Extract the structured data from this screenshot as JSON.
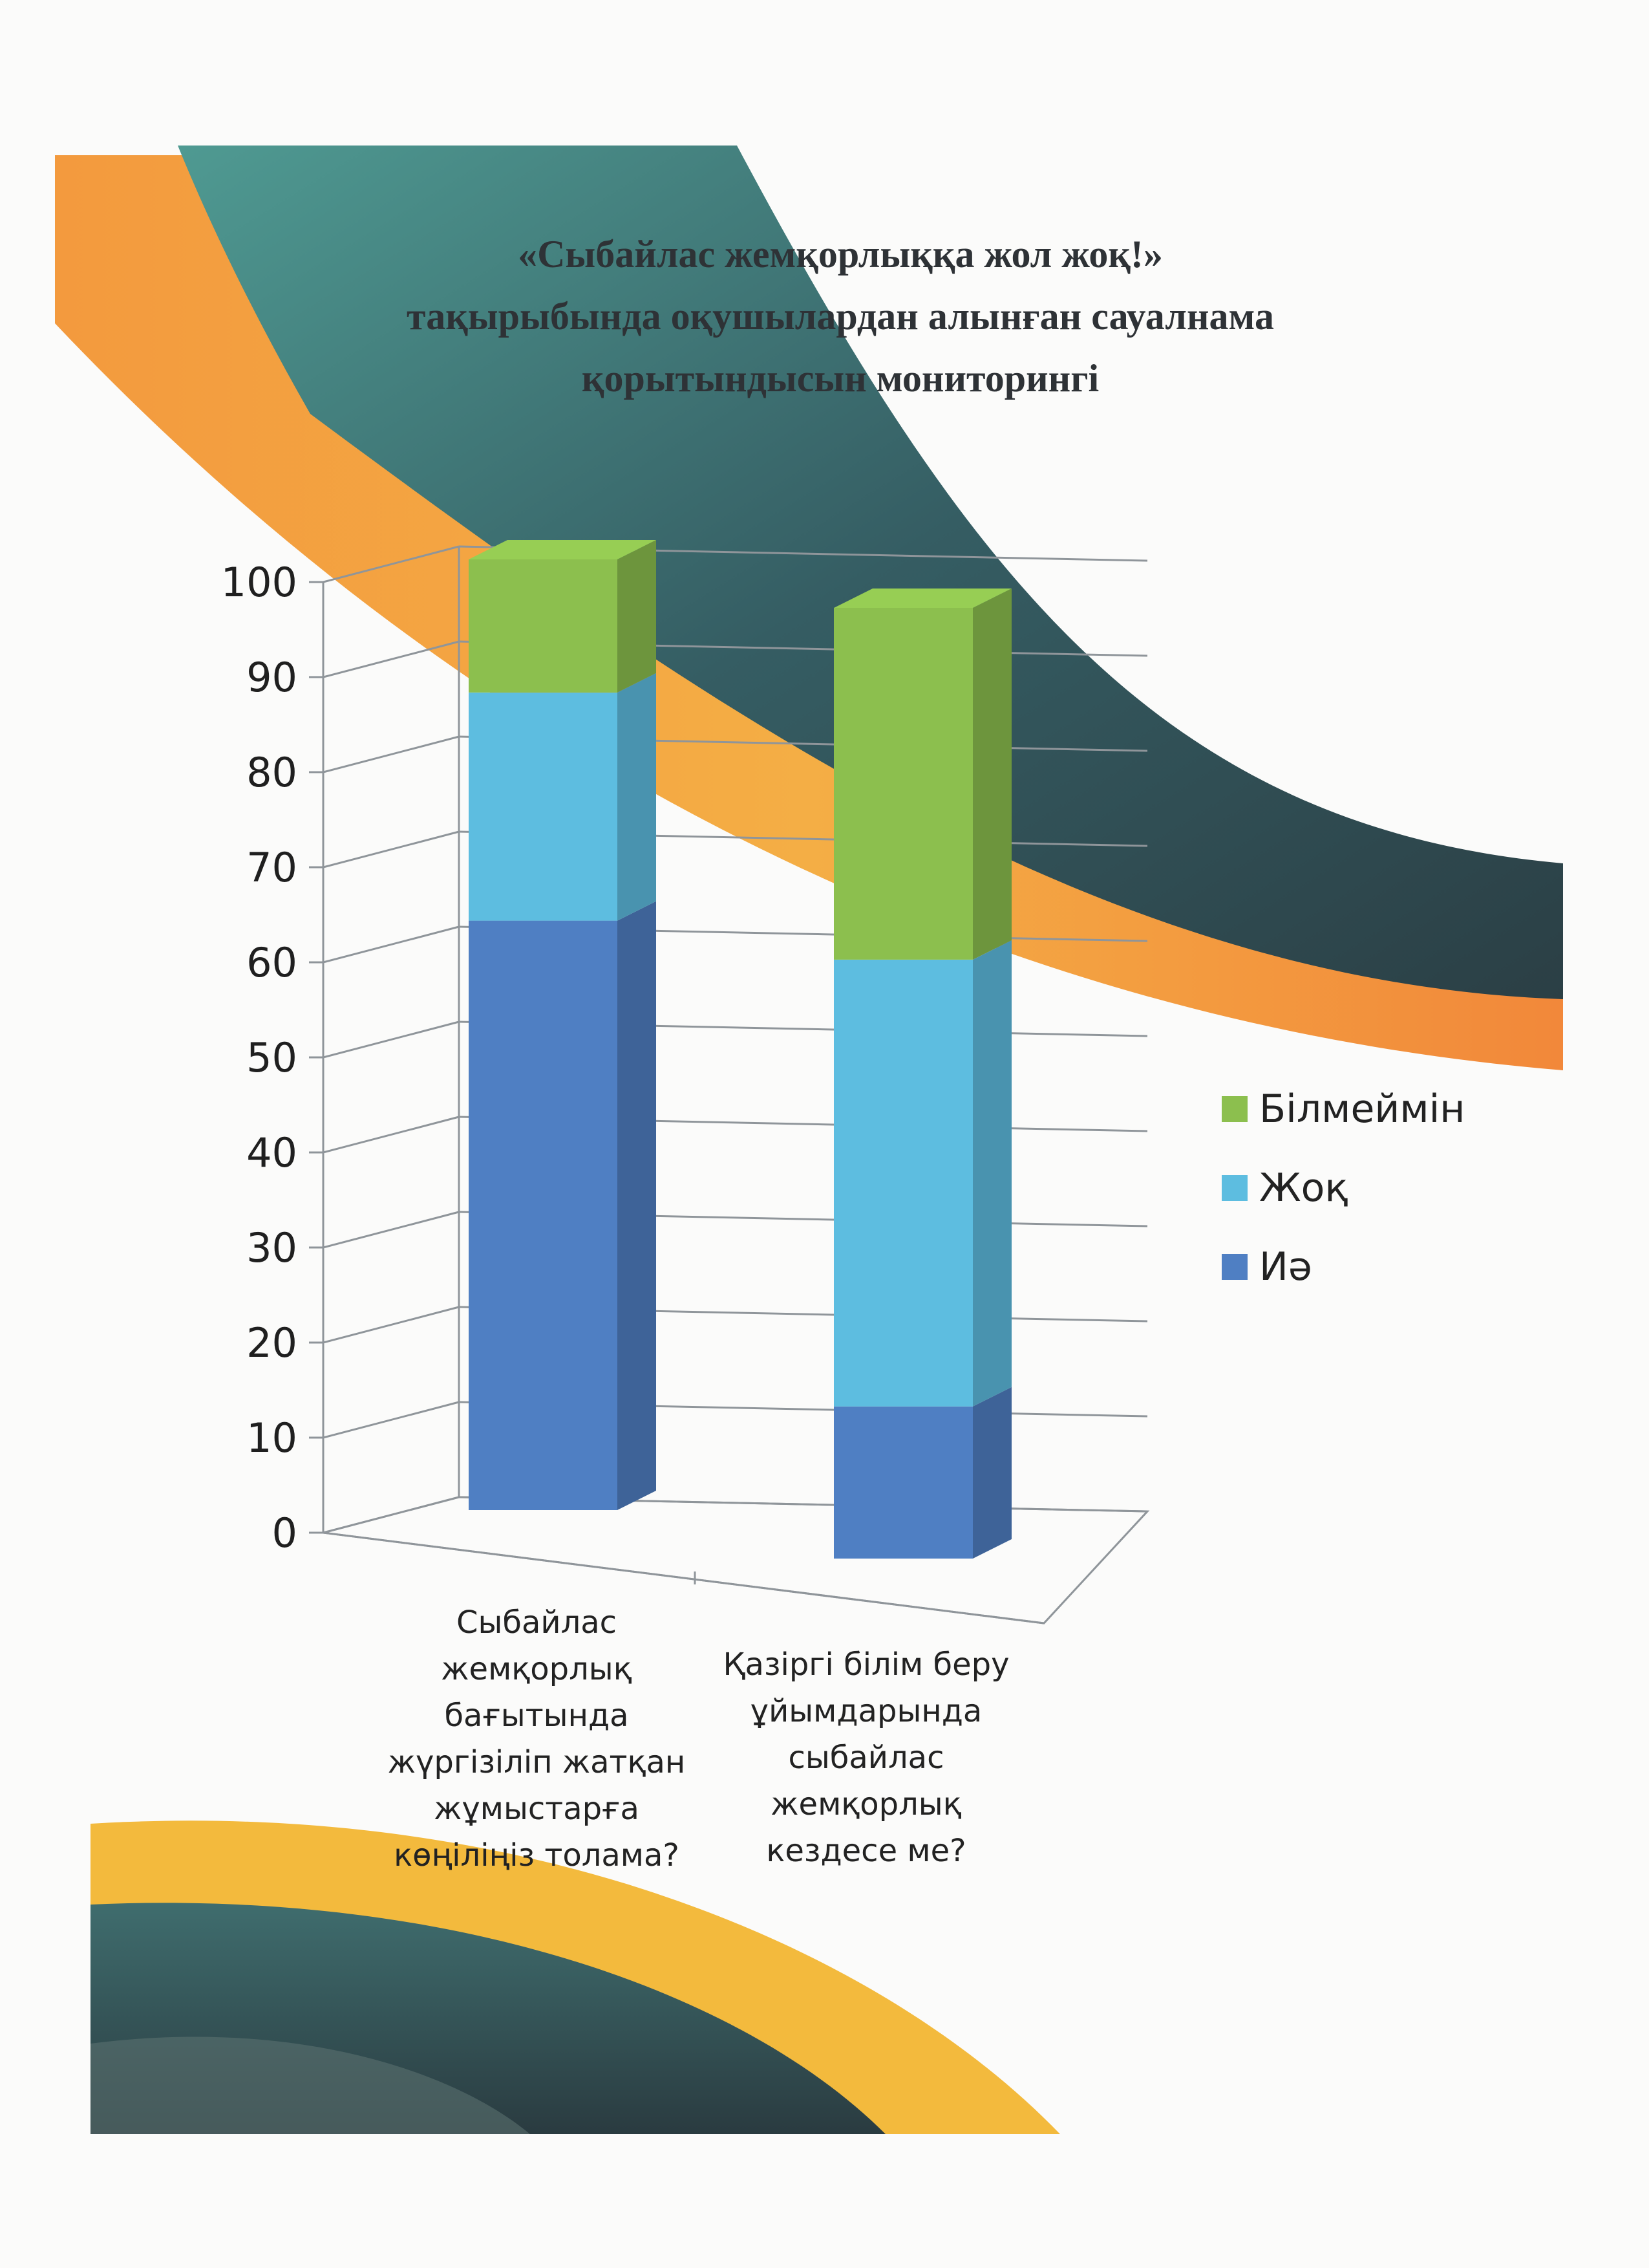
{
  "title_lines": [
    "«Сыбайлас жемқорлыққа жол жоқ!»",
    "тақырыбында оқушылардан алынған сауалнама",
    "қорытындысын мониторингі"
  ],
  "colors": {
    "green": "#8cbf4e",
    "cyan": "#5dbde0",
    "blue": "#4f7fc3",
    "teal_dark": "#2f4d55",
    "teal_light": "#4f9a92",
    "orange": "#f2913a",
    "yellow": "#f4c23a"
  },
  "chart_data": {
    "type": "bar",
    "stacked": true,
    "three_d": true,
    "title": "«Сыбайлас жемқорлыққа жол жоқ!» тақырыбында оқушылардан алынған сауалнама қорытындысын мониторингі",
    "categories": [
      [
        "Сыбайлас",
        "жемқорлық",
        "бағытында",
        "жүргізіліп жатқан",
        "жұмыстарға",
        "көңіліңіз толама?"
      ],
      [
        "Қазіргі білім беру",
        "ұйымдарында",
        "сыбайлас",
        "жемқорлық",
        "кездесе ме?"
      ]
    ],
    "series": [
      {
        "name": "Иә",
        "values": [
          62,
          16
        ],
        "color": "#4f7fc3"
      },
      {
        "name": "Жоқ",
        "values": [
          24,
          47
        ],
        "color": "#5dbde0"
      },
      {
        "name": "Білмеймін",
        "values": [
          14,
          37
        ],
        "color": "#8cbf4e"
      }
    ],
    "ylim": [
      0,
      100
    ],
    "yticks": [
      0,
      10,
      20,
      30,
      40,
      50,
      60,
      70,
      80,
      90,
      100
    ],
    "grid": true,
    "legend": "right"
  }
}
